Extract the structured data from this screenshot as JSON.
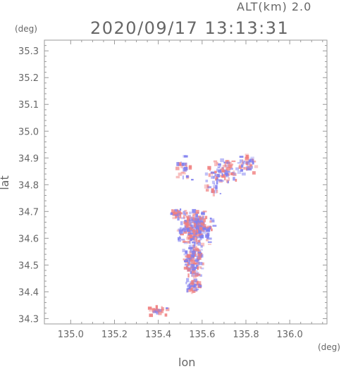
{
  "header": {
    "alt_label": "ALT(km) 2.0",
    "timestamp": "2020/09/17 13:13:31"
  },
  "chart_data": {
    "type": "heatmap",
    "title": "2020/09/17 13:13:31",
    "xlabel": "lon",
    "ylabel": "lat",
    "x_unit": "(deg)",
    "y_unit": "(deg)",
    "xlim": [
      134.88,
      136.17
    ],
    "ylim": [
      34.28,
      35.34
    ],
    "x_ticks": [
      135.0,
      135.2,
      135.4,
      135.6,
      135.8,
      136.0
    ],
    "x_tick_labels": [
      "135.0",
      "135.2",
      "135.4",
      "135.6",
      "135.8",
      "136.0"
    ],
    "y_ticks": [
      34.3,
      34.4,
      34.5,
      34.6,
      34.7,
      34.8,
      34.9,
      35.0,
      35.1,
      35.2,
      35.3
    ],
    "y_tick_labels": [
      "34.3",
      "34.4",
      "34.5",
      "34.6",
      "34.7",
      "34.8",
      "34.9",
      "35.0",
      "35.1",
      "35.2",
      "35.3"
    ],
    "colors": {
      "positive": "#f08080",
      "negative": "#8080f0",
      "axis": "#999999"
    },
    "clusters": [
      {
        "lon": 135.57,
        "lat": 34.64,
        "dlon": 0.09,
        "dlat": 0.07,
        "n": 260
      },
      {
        "lon": 135.56,
        "lat": 34.52,
        "dlon": 0.05,
        "dlat": 0.07,
        "n": 140
      },
      {
        "lon": 135.56,
        "lat": 34.42,
        "dlon": 0.04,
        "dlat": 0.03,
        "n": 50
      },
      {
        "lon": 135.7,
        "lat": 34.85,
        "dlon": 0.1,
        "dlat": 0.05,
        "n": 90
      },
      {
        "lon": 135.81,
        "lat": 34.88,
        "dlon": 0.05,
        "dlat": 0.04,
        "n": 40
      },
      {
        "lon": 135.52,
        "lat": 34.86,
        "dlon": 0.04,
        "dlat": 0.05,
        "n": 30
      },
      {
        "lon": 135.4,
        "lat": 34.33,
        "dlon": 0.05,
        "dlat": 0.02,
        "n": 25
      },
      {
        "lon": 135.48,
        "lat": 34.69,
        "dlon": 0.03,
        "dlat": 0.02,
        "n": 30
      },
      {
        "lon": 135.65,
        "lat": 34.78,
        "dlon": 0.04,
        "dlat": 0.03,
        "n": 20
      }
    ]
  }
}
